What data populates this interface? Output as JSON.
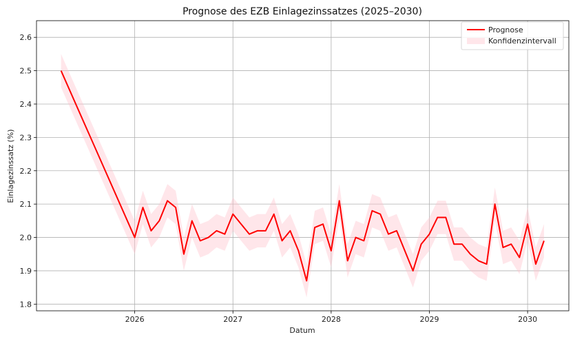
{
  "chart_data": {
    "type": "line",
    "title": "Prognose des EZB Einlagezinssatzes (2025–2030)",
    "xlabel": "Datum",
    "ylabel": "Einlagezinssatz (%)",
    "xlim": [
      2025.0,
      2030.42
    ],
    "ylim": [
      1.78,
      2.65
    ],
    "xticks": [
      2026,
      2027,
      2028,
      2029,
      2030
    ],
    "xtick_labels": [
      "2026",
      "2027",
      "2028",
      "2029",
      "2030"
    ],
    "yticks": [
      1.8,
      1.9,
      2.0,
      2.1,
      2.2,
      2.3,
      2.4,
      2.5,
      2.6
    ],
    "ytick_labels": [
      "1.8",
      "1.9",
      "2.0",
      "2.1",
      "2.2",
      "2.3",
      "2.4",
      "2.5",
      "2.6"
    ],
    "grid": true,
    "legend_position": "top-right",
    "colors": {
      "line": "#ff0000",
      "band": "#ffc0cb"
    },
    "series": [
      {
        "name": "Prognose",
        "x": [
          2025.25,
          2026.0,
          2026.083,
          2026.167,
          2026.25,
          2026.333,
          2026.417,
          2026.5,
          2026.583,
          2026.667,
          2026.75,
          2026.833,
          2026.917,
          2027.0,
          2027.083,
          2027.167,
          2027.25,
          2027.333,
          2027.417,
          2027.5,
          2027.583,
          2027.667,
          2027.75,
          2027.833,
          2027.917,
          2028.0,
          2028.083,
          2028.167,
          2028.25,
          2028.333,
          2028.417,
          2028.5,
          2028.583,
          2028.667,
          2028.75,
          2028.833,
          2028.917,
          2029.0,
          2029.083,
          2029.167,
          2029.25,
          2029.333,
          2029.417,
          2029.5,
          2029.583,
          2029.667,
          2029.75,
          2029.833,
          2029.917,
          2030.0,
          2030.083,
          2030.167
        ],
        "y": [
          2.5,
          2.0,
          2.09,
          2.02,
          2.05,
          2.11,
          2.09,
          1.95,
          2.05,
          1.99,
          2.0,
          2.02,
          2.01,
          2.07,
          2.04,
          2.01,
          2.02,
          2.02,
          2.07,
          1.99,
          2.02,
          1.96,
          1.87,
          2.03,
          2.04,
          1.96,
          2.11,
          1.93,
          2.0,
          1.99,
          2.08,
          2.07,
          2.01,
          2.02,
          1.96,
          1.9,
          1.98,
          2.01,
          2.06,
          2.06,
          1.98,
          1.98,
          1.95,
          1.93,
          1.92,
          2.1,
          1.97,
          1.98,
          1.94,
          2.04,
          1.92,
          1.99
        ]
      },
      {
        "name": "Konfidenzintervall",
        "band_halfwidth": 0.05
      }
    ]
  }
}
